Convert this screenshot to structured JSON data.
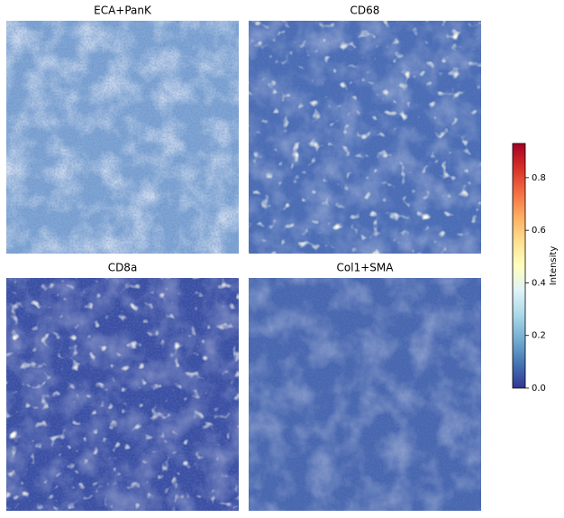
{
  "chart_data": {
    "type": "image-grid",
    "panels": [
      {
        "title": "ECA+PanK",
        "color": "#7ea6d3"
      },
      {
        "title": "CD68",
        "color": "#4a6db4"
      },
      {
        "title": "CD8a",
        "color": "#3a4fa2"
      },
      {
        "title": "Col1+SMA",
        "color": "#4767ae"
      }
    ],
    "colorbar": {
      "label": "Intensity",
      "lim": [
        0,
        0.93
      ],
      "ticks": [
        {
          "value": 0,
          "label": "0.0"
        },
        {
          "value": 0.2,
          "label": "0.2"
        },
        {
          "value": 0.4,
          "label": "0.4"
        },
        {
          "value": 0.6,
          "label": "0.6"
        },
        {
          "value": 0.8,
          "label": "0.8"
        }
      ],
      "colors": [
        "#313695",
        "#4575b4",
        "#74add1",
        "#abd9e9",
        "#e0f3f8",
        "#ffffbf",
        "#fee090",
        "#fdae61",
        "#f46d43",
        "#d73027",
        "#a50026"
      ]
    }
  }
}
